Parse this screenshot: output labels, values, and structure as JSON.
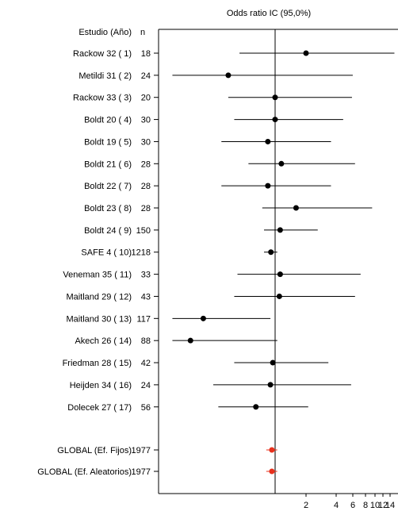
{
  "chart_data": {
    "type": "forest",
    "title": "Odds ratio IC  (95,0%)",
    "column_headers": {
      "study": "Estudio  (Año)",
      "n": "n"
    },
    "scale": "log",
    "x_tick_labels": [
      "2",
      "4",
      "6",
      "8",
      "10",
      "12",
      "14"
    ],
    "x_ticks": [
      2,
      4,
      6,
      8,
      10,
      12,
      14
    ],
    "reference_line": 1,
    "xlim": [
      0.1,
      14.5
    ],
    "studies": [
      {
        "label": "Rackow 32 (  1)",
        "n": "18",
        "or": 2.0,
        "lo": 0.45,
        "hi": 14.5,
        "arrow_right": true
      },
      {
        "label": "Metildi 31 (  2)",
        "n": "24",
        "or": 0.35,
        "lo": 0.1,
        "hi": 5.7,
        "arrow_left": true
      },
      {
        "label": "Rackow 33 (  3)",
        "n": "20",
        "or": 1.0,
        "lo": 0.35,
        "hi": 5.6
      },
      {
        "label": "Boldt 20 (  4)",
        "n": "30",
        "or": 1.0,
        "lo": 0.4,
        "hi": 4.6
      },
      {
        "label": "Boldt 19 (  5)",
        "n": "30",
        "or": 0.85,
        "lo": 0.3,
        "hi": 3.5
      },
      {
        "label": "Boldt 21 (  6)",
        "n": "28",
        "or": 1.15,
        "lo": 0.55,
        "hi": 6.0
      },
      {
        "label": "Boldt 22 (  7)",
        "n": "28",
        "or": 0.85,
        "lo": 0.3,
        "hi": 3.5
      },
      {
        "label": "Boldt 23 (  8)",
        "n": "28",
        "or": 1.6,
        "lo": 0.75,
        "hi": 8.8
      },
      {
        "label": "Boldt 24 (  9)",
        "n": "150",
        "or": 1.12,
        "lo": 0.78,
        "hi": 2.6
      },
      {
        "label": "SAFE 4 ( 10)",
        "n": "1218",
        "or": 0.91,
        "lo": 0.78,
        "hi": 1.05
      },
      {
        "label": "Veneman 35 ( 11)",
        "n": "33",
        "or": 1.12,
        "lo": 0.43,
        "hi": 6.8
      },
      {
        "label": "Maitland 29 ( 12)",
        "n": "43",
        "or": 1.1,
        "lo": 0.4,
        "hi": 6.0
      },
      {
        "label": "Maitland 30 ( 13)",
        "n": "117",
        "or": 0.2,
        "lo": 0.1,
        "hi": 0.9,
        "arrow_left": true
      },
      {
        "label": "Akech 26 ( 14)",
        "n": "88",
        "or": 0.15,
        "lo": 0.1,
        "hi": 1.05,
        "arrow_left": true
      },
      {
        "label": "Friedman 28 ( 15)",
        "n": "42",
        "or": 0.95,
        "lo": 0.4,
        "hi": 3.3
      },
      {
        "label": "Heijden 34 ( 16)",
        "n": "24",
        "or": 0.9,
        "lo": 0.25,
        "hi": 5.5
      },
      {
        "label": "Dolecek 27 ( 17)",
        "n": "56",
        "or": 0.65,
        "lo": 0.28,
        "hi": 2.1
      }
    ],
    "pooled": [
      {
        "label": "GLOBAL (Ef. Fijos)",
        "n": "1977",
        "or": 0.93,
        "lo": 0.82,
        "hi": 1.05
      },
      {
        "label": "GLOBAL (Ef. Aleatorios)",
        "n": "1977",
        "or": 0.93,
        "lo": 0.82,
        "hi": 1.05
      }
    ],
    "colors": {
      "study_marker": "#000000",
      "pooled_marker": "#e8301c",
      "line": "#000000"
    }
  }
}
